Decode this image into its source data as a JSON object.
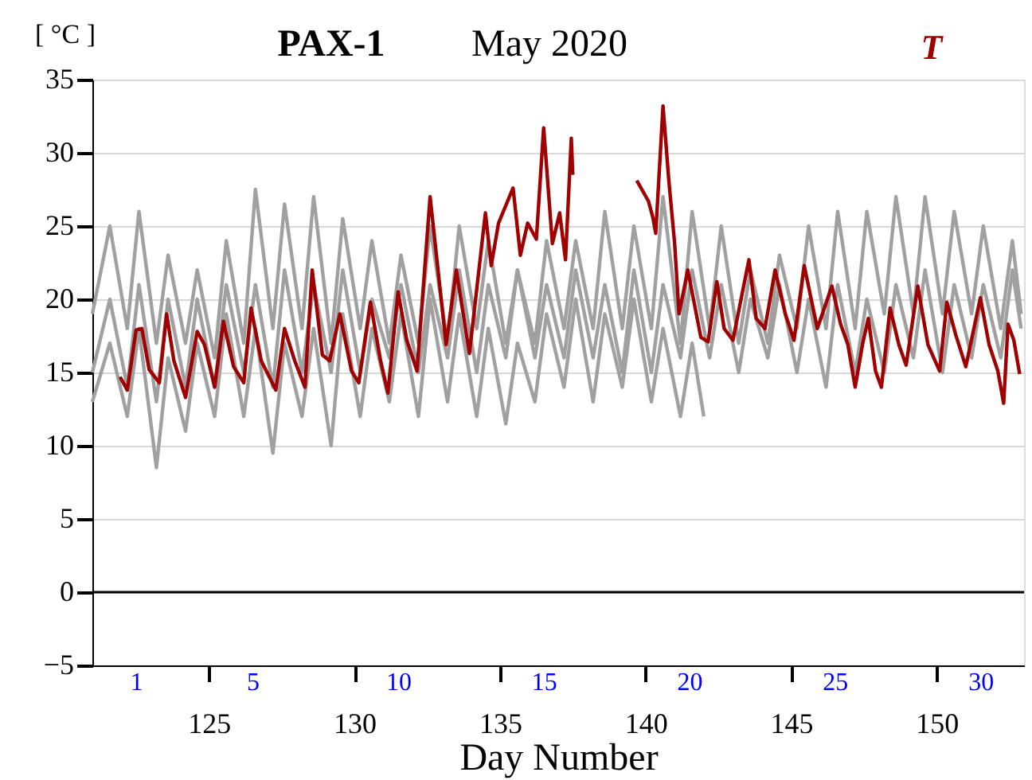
{
  "chart_data": {
    "type": "line",
    "title": "PAX-1",
    "subtitle": "May  2020",
    "xlabel": "Day  Number",
    "ylabel": "[ °C ]",
    "xlim": [
      121,
      153
    ],
    "xticks": [
      125,
      130,
      135,
      140,
      145,
      150
    ],
    "ylim": [
      -5,
      35
    ],
    "yticks": [
      -5,
      0,
      5,
      10,
      15,
      20,
      25,
      30,
      35
    ],
    "grid": "y",
    "legend": "top right",
    "ref_lines": [
      {
        "axis": "y",
        "value": 0,
        "color": "#000000"
      }
    ],
    "x2lim": [
      -0.5,
      31.5
    ],
    "x2ticks": [
      1,
      5,
      10,
      15,
      20,
      25,
      30
    ],
    "series": [
      {
        "color": "#a0a0a0",
        "x": [
          121.0,
          121.6,
          122.2,
          122.6,
          123.2,
          123.6,
          124.2,
          124.6,
          125.2,
          125.6,
          126.2,
          126.6,
          127.2,
          127.6,
          128.2,
          128.6,
          129.2,
          129.6,
          130.2,
          130.6,
          131.2,
          131.6,
          132.2,
          132.6,
          133.2,
          133.6,
          134.2,
          134.6,
          135.2,
          135.6,
          136.2,
          136.6,
          137.2,
          137.6,
          138.2,
          138.6,
          139.2,
          139.6,
          140.2,
          140.6,
          141.2,
          141.6,
          142.2,
          142.6,
          143.2,
          143.6,
          144.2,
          144.6,
          145.2,
          145.6,
          146.2,
          146.6,
          147.2,
          147.6,
          148.2,
          148.6,
          149.2,
          149.6,
          150.2,
          150.6,
          151.2,
          151.6,
          152.2,
          152.6,
          152.9
        ],
        "values": [
          19,
          25,
          18,
          26,
          17,
          23,
          17,
          22,
          16,
          24,
          17,
          27.5,
          18,
          26.5,
          18,
          27,
          17,
          25.5,
          18,
          24,
          17,
          23,
          17,
          25,
          17,
          25,
          18,
          24,
          17,
          22,
          17,
          24,
          18,
          24,
          18,
          26,
          18,
          25,
          18,
          27,
          17,
          26,
          18,
          25,
          17,
          22,
          17,
          23,
          18,
          25,
          18,
          26,
          18,
          26,
          19,
          27,
          19,
          27,
          19,
          26,
          19,
          25,
          18,
          24,
          19
        ]
      },
      {
        "color": "#a0a0a0",
        "x": [
          121.0,
          121.6,
          122.2,
          122.6,
          123.2,
          123.6,
          124.2,
          124.6,
          125.2,
          125.6,
          126.2,
          126.6,
          127.2,
          127.6,
          128.2,
          128.6,
          129.2,
          129.6,
          130.2,
          130.6,
          131.2,
          131.6,
          132.2,
          132.6,
          133.2,
          133.6,
          134.2,
          134.6,
          135.2,
          135.6,
          136.2,
          136.6,
          137.2,
          137.6,
          138.2,
          138.6,
          139.2,
          139.6,
          140.2,
          140.6,
          141.2,
          141.6,
          142.0
        ],
        "values": [
          13,
          17,
          12,
          18,
          8.5,
          16,
          11,
          17,
          12,
          19,
          12,
          18,
          9.5,
          17,
          12,
          18,
          10,
          19,
          12,
          18,
          13,
          19,
          12,
          20,
          13,
          19,
          12,
          18,
          11.5,
          17,
          13,
          19,
          14,
          20,
          13,
          19,
          14,
          20,
          13,
          18,
          12,
          17,
          12
        ]
      },
      {
        "color": "#a0a0a0",
        "x": [
          121.0,
          121.6,
          122.2,
          122.6,
          123.2,
          123.6,
          124.2,
          124.6,
          125.2,
          125.6,
          126.2,
          126.6,
          127.2,
          127.6,
          128.2,
          128.6,
          129.2,
          129.6,
          130.2,
          130.6,
          131.2,
          131.6,
          132.2,
          132.6,
          133.2,
          133.6,
          134.2,
          134.6,
          135.2,
          135.6,
          136.2,
          136.6,
          137.2,
          137.6,
          138.2,
          138.6,
          139.2,
          139.6,
          140.2,
          140.6,
          141.2,
          141.6,
          142.2,
          142.6,
          143.2,
          143.6,
          144.2,
          144.6,
          145.2,
          145.6,
          146.2,
          146.6,
          147.2,
          147.6,
          148.2,
          148.6,
          149.2,
          149.6,
          150.2,
          150.6,
          151.2,
          151.6,
          152.2,
          152.6,
          152.9
        ],
        "values": [
          15,
          20,
          14,
          21,
          13,
          20,
          14,
          20,
          14,
          21,
          15,
          21,
          14,
          22,
          15,
          21,
          15,
          22,
          15,
          20,
          16,
          21,
          15,
          21,
          16,
          22,
          15,
          21,
          16,
          22,
          16,
          21,
          16,
          22,
          16,
          21,
          15,
          22,
          15,
          21,
          16,
          22,
          16,
          21,
          15,
          20,
          16,
          21,
          15,
          20,
          14,
          21,
          15,
          20,
          15,
          21,
          16,
          22,
          15,
          21,
          16,
          21,
          16,
          22,
          18
        ]
      },
      {
        "name": "T",
        "color": "#a00000",
        "x": [
          121.95,
          122.2,
          122.5,
          122.7,
          122.95,
          123.3,
          123.55,
          123.8,
          124.2,
          124.6,
          124.85,
          125.2,
          125.5,
          125.85,
          126.2,
          126.45,
          126.8,
          127.3,
          127.6,
          127.95,
          128.3,
          128.55,
          128.9,
          129.15,
          129.5,
          129.9,
          130.15,
          130.55,
          130.9,
          131.15,
          131.5,
          131.8,
          132.15,
          132.6,
          133.15,
          133.5,
          133.95,
          134.5,
          134.7,
          134.95,
          135.45,
          135.7,
          135.95,
          136.25,
          136.5,
          136.8,
          137.05,
          137.25,
          137.45,
          137.5,
          138.6,
          139.7,
          140.1,
          140.25,
          140.35,
          140.6,
          140.8,
          141.0,
          141.15,
          141.45,
          141.9,
          142.15,
          142.45,
          142.7,
          143.0,
          143.55,
          143.8,
          144.1,
          144.45,
          144.8,
          145.1,
          145.45,
          145.9,
          146.4,
          146.7,
          146.95,
          147.2,
          147.45,
          147.65,
          147.9,
          148.1,
          148.4,
          148.7,
          148.95,
          149.35,
          149.7,
          150.1,
          150.35,
          150.65,
          151.0,
          151.5,
          151.8,
          152.1,
          152.3,
          152.45,
          152.65,
          152.85
        ],
        "values": [
          14.7,
          13.8,
          17.9,
          18.0,
          15.2,
          14.3,
          19.0,
          15.8,
          13.3,
          17.8,
          16.9,
          14.0,
          18.5,
          15.4,
          14.3,
          19.4,
          15.8,
          13.8,
          18.0,
          15.8,
          14.0,
          22.0,
          16.2,
          15.8,
          19.0,
          15.1,
          14.3,
          19.8,
          15.8,
          13.6,
          20.5,
          17.2,
          15.1,
          27.0,
          16.9,
          22.0,
          16.3,
          25.9,
          22.3,
          25.2,
          27.6,
          23.0,
          25.2,
          24.1,
          31.7,
          23.8,
          25.9,
          22.7,
          31.0,
          28.5,
          null,
          28.1,
          26.7,
          25.6,
          24.5,
          33.2,
          28.1,
          23.8,
          19.0,
          22.0,
          17.4,
          17.1,
          21.2,
          18.0,
          17.2,
          22.7,
          18.7,
          18.0,
          22.0,
          19.0,
          17.2,
          22.3,
          18.0,
          20.9,
          18.3,
          16.9,
          14.0,
          16.9,
          18.7,
          15.1,
          14.0,
          19.4,
          16.9,
          15.5,
          20.9,
          16.9,
          15.1,
          19.8,
          17.6,
          15.4,
          20.1,
          16.9,
          15.1,
          12.9,
          18.3,
          17.2,
          14.9
        ]
      }
    ]
  }
}
